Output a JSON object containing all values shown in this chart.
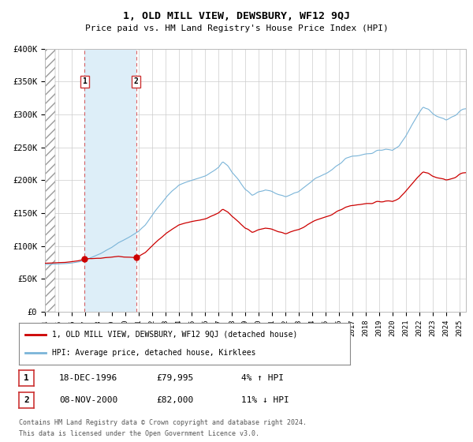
{
  "title": "1, OLD MILL VIEW, DEWSBURY, WF12 9QJ",
  "subtitle": "Price paid vs. HM Land Registry's House Price Index (HPI)",
  "x_start": 1994.0,
  "x_end": 2025.5,
  "y_min": 0,
  "y_max": 400000,
  "y_ticks": [
    0,
    50000,
    100000,
    150000,
    200000,
    250000,
    300000,
    350000,
    400000
  ],
  "y_tick_labels": [
    "£0",
    "£50K",
    "£100K",
    "£150K",
    "£200K",
    "£250K",
    "£300K",
    "£350K",
    "£400K"
  ],
  "x_ticks": [
    1994,
    1995,
    1996,
    1997,
    1998,
    1999,
    2000,
    2001,
    2002,
    2003,
    2004,
    2005,
    2006,
    2007,
    2008,
    2009,
    2010,
    2011,
    2012,
    2013,
    2014,
    2015,
    2016,
    2017,
    2018,
    2019,
    2020,
    2021,
    2022,
    2023,
    2024,
    2025
  ],
  "hpi_line_color": "#7ab4d8",
  "price_line_color": "#cc0000",
  "sale1_x": 1996.958,
  "sale1_y": 79995,
  "sale1_label": "1",
  "sale1_date": "18-DEC-1996",
  "sale1_price": "£79,995",
  "sale1_hpi": "4% ↑ HPI",
  "sale2_x": 2000.833,
  "sale2_y": 82000,
  "sale2_label": "2",
  "sale2_date": "08-NOV-2000",
  "sale2_price": "£82,000",
  "sale2_hpi": "11% ↓ HPI",
  "legend_line1": "1, OLD MILL VIEW, DEWSBURY, WF12 9QJ (detached house)",
  "legend_line2": "HPI: Average price, detached house, Kirklees",
  "footer1": "Contains HM Land Registry data © Crown copyright and database right 2024.",
  "footer2": "This data is licensed under the Open Government Licence v3.0.",
  "hatch_region_start": 1994.0,
  "hatch_region_end": 1994.75,
  "highlight_region_start": 1996.958,
  "highlight_region_end": 2000.833,
  "background_color": "#ffffff",
  "grid_color": "#cccccc"
}
